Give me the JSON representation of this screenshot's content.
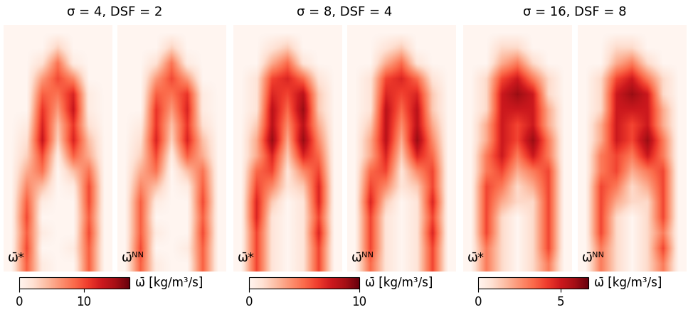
{
  "chart_data": [
    {
      "type": "heatmap",
      "title": "σ = 4, DSF = 2",
      "colorbar_label": "ω̄ [kg/m³/s]",
      "colorbar_range": [
        0,
        17
      ],
      "colorbar_ticks": [
        0,
        10
      ],
      "panels": [
        {
          "label": "ω̄*",
          "cells": [
            [
              0,
              0,
              0,
              0,
              0,
              0,
              0
            ],
            [
              0,
              0,
              0,
              3,
              0,
              0,
              0
            ],
            [
              0,
              0,
              2,
              8,
              1,
              0,
              0
            ],
            [
              0,
              0,
              6,
              10,
              7,
              0,
              0
            ],
            [
              0,
              0,
              9,
              8,
              12,
              1,
              0
            ],
            [
              0,
              0,
              11,
              6,
              13,
              1,
              0
            ],
            [
              0,
              1,
              12,
              4,
              11,
              2,
              0
            ],
            [
              0,
              2,
              13,
              3,
              12,
              4,
              0
            ],
            [
              0,
              3,
              10,
              1,
              9,
              5,
              0
            ],
            [
              0,
              5,
              8,
              0,
              4,
              8,
              0
            ],
            [
              0,
              7,
              4,
              0,
              1,
              10,
              0
            ],
            [
              0,
              9,
              1,
              0,
              0,
              10,
              0
            ],
            [
              0,
              10,
              0,
              0,
              0,
              9,
              0
            ],
            [
              0,
              9,
              1,
              0,
              0,
              10,
              0
            ],
            [
              0,
              10,
              0,
              0,
              1,
              9,
              0
            ],
            [
              0,
              9,
              1,
              0,
              0,
              9,
              0
            ]
          ]
        },
        {
          "label": "ω̄ᴺᴺ",
          "cells": [
            [
              0,
              0,
              0,
              0,
              0,
              0,
              0
            ],
            [
              0,
              0,
              0,
              3,
              0,
              0,
              0
            ],
            [
              0,
              0,
              2,
              8,
              1,
              0,
              0
            ],
            [
              0,
              0,
              6,
              10,
              6,
              0,
              0
            ],
            [
              0,
              0,
              9,
              8,
              11,
              1,
              0
            ],
            [
              0,
              0,
              11,
              6,
              12,
              1,
              0
            ],
            [
              0,
              1,
              11,
              4,
              11,
              2,
              0
            ],
            [
              0,
              2,
              12,
              3,
              12,
              4,
              0
            ],
            [
              0,
              3,
              10,
              1,
              9,
              5,
              0
            ],
            [
              0,
              5,
              8,
              0,
              4,
              8,
              0
            ],
            [
              0,
              7,
              4,
              0,
              1,
              9,
              0
            ],
            [
              0,
              9,
              1,
              0,
              0,
              10,
              0
            ],
            [
              0,
              9,
              0,
              0,
              0,
              9,
              0
            ],
            [
              0,
              9,
              1,
              0,
              0,
              10,
              0
            ],
            [
              0,
              10,
              0,
              0,
              1,
              9,
              0
            ],
            [
              0,
              9,
              1,
              0,
              0,
              9,
              0
            ]
          ]
        }
      ]
    },
    {
      "type": "heatmap",
      "title": "σ = 8, DSF = 4",
      "colorbar_label": "ω̄ [kg/m³/s]",
      "colorbar_range": [
        0,
        10
      ],
      "colorbar_ticks": [
        0,
        10
      ],
      "panels": [
        {
          "label": "ω̄*",
          "cells": [
            [
              0,
              0,
              0,
              0,
              0,
              0,
              0
            ],
            [
              0,
              0,
              1,
              2,
              0,
              0,
              0
            ],
            [
              0,
              0,
              3,
              5,
              1,
              0,
              0
            ],
            [
              0,
              1,
              6,
              7,
              5,
              1,
              0
            ],
            [
              0,
              1,
              7,
              6,
              8,
              2,
              0
            ],
            [
              0,
              1,
              8,
              5,
              9,
              2,
              0
            ],
            [
              0,
              2,
              8,
              4,
              8,
              3,
              0
            ],
            [
              0,
              3,
              9,
              3,
              9,
              4,
              0
            ],
            [
              0,
              3,
              7,
              2,
              7,
              5,
              0
            ],
            [
              0,
              5,
              6,
              1,
              4,
              6,
              0
            ],
            [
              0,
              6,
              4,
              1,
              2,
              7,
              0
            ],
            [
              0,
              7,
              2,
              0,
              1,
              7,
              0
            ],
            [
              0,
              7,
              1,
              0,
              1,
              6,
              0
            ],
            [
              0,
              6,
              1,
              0,
              1,
              7,
              0
            ],
            [
              0,
              6,
              1,
              0,
              1,
              6,
              0
            ],
            [
              0,
              6,
              1,
              0,
              1,
              6,
              0
            ]
          ]
        },
        {
          "label": "ω̄ᴺᴺ",
          "cells": [
            [
              0,
              0,
              0,
              0,
              0,
              0,
              0
            ],
            [
              0,
              0,
              1,
              2,
              0,
              0,
              0
            ],
            [
              0,
              0,
              3,
              5,
              1,
              0,
              0
            ],
            [
              0,
              1,
              6,
              7,
              5,
              1,
              0
            ],
            [
              0,
              1,
              7,
              6,
              7,
              2,
              0
            ],
            [
              0,
              1,
              8,
              5,
              8,
              2,
              0
            ],
            [
              0,
              2,
              8,
              4,
              8,
              3,
              0
            ],
            [
              0,
              3,
              8,
              3,
              9,
              4,
              0
            ],
            [
              0,
              3,
              7,
              2,
              7,
              5,
              0
            ],
            [
              0,
              5,
              6,
              1,
              4,
              6,
              0
            ],
            [
              0,
              6,
              4,
              1,
              2,
              6,
              0
            ],
            [
              0,
              7,
              2,
              0,
              1,
              7,
              0
            ],
            [
              0,
              6,
              1,
              0,
              1,
              6,
              0
            ],
            [
              0,
              6,
              1,
              0,
              1,
              7,
              0
            ],
            [
              0,
              6,
              1,
              0,
              1,
              6,
              0
            ],
            [
              0,
              5,
              1,
              0,
              1,
              6,
              0
            ]
          ]
        }
      ]
    },
    {
      "type": "heatmap",
      "title": "σ = 16, DSF = 8",
      "colorbar_label": "ω̄ [kg/m³/s]",
      "colorbar_range": [
        0,
        6.7
      ],
      "colorbar_ticks": [
        0,
        5
      ],
      "panels": [
        {
          "label": "ω̄*",
          "cells": [
            [
              0,
              0,
              0,
              0,
              0,
              0,
              0
            ],
            [
              0,
              0,
              1,
              1,
              0,
              0,
              0
            ],
            [
              0,
              0,
              2,
              3,
              1,
              0,
              0
            ],
            [
              0,
              1,
              4,
              5,
              3,
              1,
              0
            ],
            [
              0,
              1,
              5,
              6,
              5,
              1,
              0
            ],
            [
              0,
              1,
              5,
              5,
              5,
              2,
              0
            ],
            [
              0,
              2,
              5,
              4,
              5,
              2,
              0
            ],
            [
              0,
              2,
              5,
              4,
              6,
              3,
              0
            ],
            [
              0,
              3,
              5,
              3,
              5,
              3,
              0
            ],
            [
              0,
              3,
              4,
              2,
              3,
              4,
              0
            ],
            [
              0,
              4,
              3,
              1,
              2,
              4,
              0
            ],
            [
              0,
              4,
              2,
              1,
              1,
              4,
              0
            ],
            [
              0,
              4,
              1,
              0,
              1,
              4,
              0
            ],
            [
              0,
              4,
              1,
              0,
              1,
              4,
              0
            ],
            [
              0,
              3,
              1,
              0,
              1,
              4,
              0
            ],
            [
              0,
              3,
              1,
              0,
              1,
              3,
              0
            ]
          ]
        },
        {
          "label": "ω̄ᴺᴺ",
          "cells": [
            [
              0,
              0,
              0,
              0,
              0,
              0,
              0
            ],
            [
              0,
              0,
              1,
              1,
              0,
              0,
              0
            ],
            [
              0,
              0,
              2,
              3,
              1,
              0,
              0
            ],
            [
              0,
              1,
              4,
              5,
              3,
              1,
              0
            ],
            [
              0,
              1,
              5,
              6,
              5,
              1,
              0
            ],
            [
              0,
              1,
              5,
              5,
              5,
              2,
              0
            ],
            [
              0,
              2,
              5,
              4,
              5,
              2,
              0
            ],
            [
              0,
              2,
              5,
              4,
              6,
              3,
              0
            ],
            [
              0,
              3,
              4,
              3,
              5,
              3,
              0
            ],
            [
              0,
              3,
              4,
              2,
              3,
              4,
              0
            ],
            [
              0,
              4,
              3,
              1,
              2,
              4,
              0
            ],
            [
              0,
              4,
              2,
              1,
              1,
              4,
              0
            ],
            [
              0,
              4,
              1,
              0,
              1,
              4,
              0
            ],
            [
              0,
              4,
              1,
              0,
              1,
              3,
              0
            ],
            [
              0,
              3,
              1,
              0,
              1,
              4,
              0
            ],
            [
              0,
              3,
              1,
              0,
              1,
              3,
              0
            ]
          ]
        }
      ]
    }
  ]
}
